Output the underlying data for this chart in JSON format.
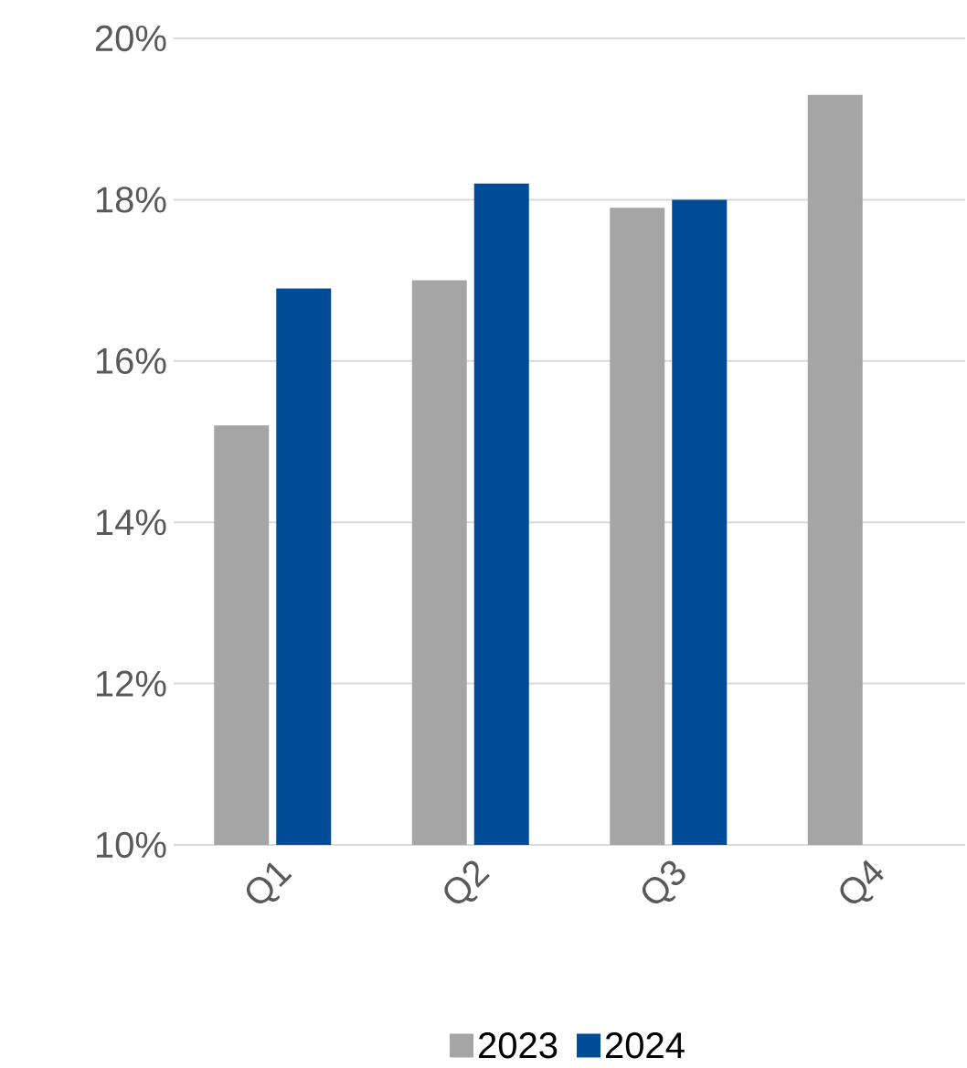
{
  "chart_data": {
    "type": "bar",
    "categories": [
      "Q1",
      "Q2",
      "Q3",
      "Q4"
    ],
    "series": [
      {
        "name": "2023",
        "color": "#a5a5a5",
        "values": [
          15.2,
          17.0,
          17.9,
          19.3
        ]
      },
      {
        "name": "2024",
        "color": "#004c97",
        "values": [
          16.9,
          18.2,
          18.0,
          null
        ]
      }
    ],
    "ylim": [
      10,
      20
    ],
    "yticks": [
      {
        "value": 10,
        "label": "10%"
      },
      {
        "value": 12,
        "label": "12%"
      },
      {
        "value": 14,
        "label": "14%"
      },
      {
        "value": 16,
        "label": "16%"
      },
      {
        "value": 18,
        "label": "18%"
      },
      {
        "value": 20,
        "label": "20%"
      }
    ],
    "grid": "y",
    "legend": "bottom"
  }
}
